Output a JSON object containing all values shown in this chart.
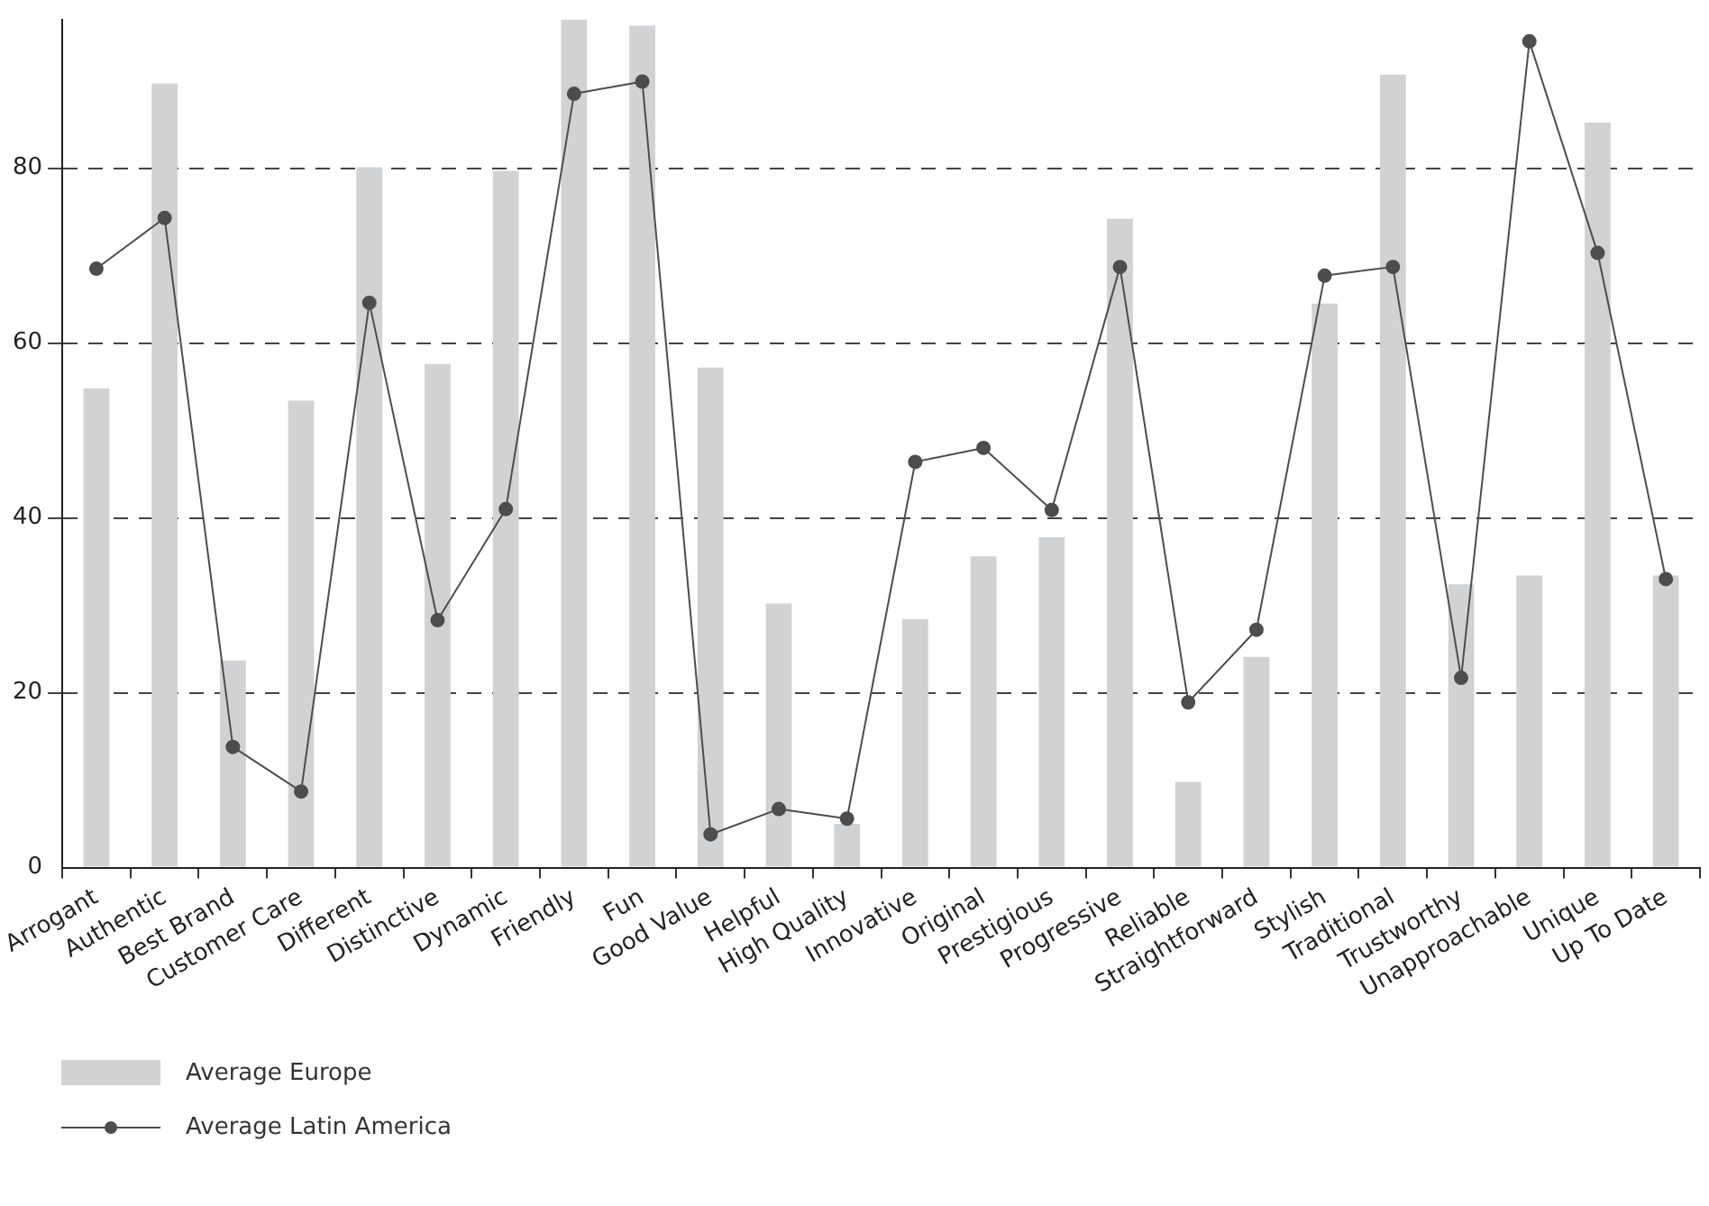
{
  "chart_data": {
    "type": "bar",
    "categories": [
      "Arrogant",
      "Authentic",
      "Best Brand",
      "Customer Care",
      "Different",
      "Distinctive",
      "Dynamic",
      "Friendly",
      "Fun",
      "Good Value",
      "Helpful",
      "High Quality",
      "Innovative",
      "Original",
      "Prestigious",
      "Progressive",
      "Reliable",
      "Straightforward",
      "Stylish",
      "Traditional",
      "Trustworthy",
      "Unapproachable",
      "Unique",
      "Up To Date"
    ],
    "series": [
      {
        "name": "Average Europe",
        "color": "#d1d2d4",
        "values": [
          54.8,
          89.7,
          23.7,
          53.4,
          80.1,
          57.6,
          79.7,
          97,
          96.3,
          57.2,
          30.2,
          5.0,
          28.4,
          35.6,
          37.8,
          74.2,
          9.8,
          24.1,
          64.5,
          90.7,
          32.4,
          33.4,
          85.2,
          33.4
        ]
      },
      {
        "name": "Average Latin America",
        "type": "line",
        "color": "#4d4d4d",
        "values": [
          68.5,
          74.3,
          13.8,
          8.7,
          64.6,
          28.3,
          41.0,
          88.5,
          89.9,
          3.8,
          6.7,
          5.6,
          46.4,
          48.0,
          40.9,
          68.7,
          18.9,
          27.2,
          67.7,
          68.7,
          21.7,
          94.5,
          70.3,
          33.0
        ]
      }
    ],
    "ylim": [
      0,
      97
    ],
    "yticks": [
      0,
      20,
      40,
      60,
      80
    ],
    "grid": "y",
    "legend": "bottom left",
    "marker": "circle"
  }
}
